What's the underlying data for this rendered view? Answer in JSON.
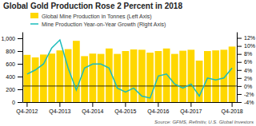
{
  "chart_data": {
    "type": "bar",
    "title": "Global Gold Production Rose 2 Percent in 2018",
    "annotations": [
      "Source: GFMS, Refinitiv, U.S. Global Investors"
    ],
    "categories": [
      "Q4-2012",
      null,
      null,
      null,
      "Q4-2013",
      null,
      null,
      null,
      "Q4-2014",
      null,
      null,
      null,
      "Q4-2015",
      null,
      null,
      null,
      "Q4-2016",
      null,
      null,
      null,
      "Q4-2017",
      null,
      null,
      null,
      null,
      "Q4-2018"
    ],
    "series": [
      {
        "name": "Global Mine Production in Tonnes (Left Axis)",
        "type": "bar",
        "color": "#FFD700",
        "values": [
          740,
          700,
          745,
          760,
          810,
          830,
          960,
          720,
          760,
          755,
          840,
          755,
          800,
          825,
          820,
          775,
          800,
          840,
          755,
          805,
          820,
          650,
          800,
          810,
          820,
          870
        ]
      },
      {
        "name": "Mine Production Year-on-Year Growth (Right Axis)",
        "type": "line",
        "color": "#1ABCBC",
        "axis": "y2",
        "values": [
          3.0,
          4.0,
          5.5,
          9.5,
          11.5,
          4.5,
          -1.0,
          4.5,
          5.5,
          5.5,
          4.5,
          -0.5,
          -1.5,
          -0.5,
          -2.5,
          -3.0,
          2.5,
          3.0,
          0.5,
          -0.5,
          0.5,
          -2.5,
          2.0,
          1.5,
          2.0,
          4.5
        ]
      }
    ],
    "ylim": [
      0,
      1100
    ],
    "yticks": [
      0,
      200,
      400,
      600,
      800,
      {
        "value": 1000,
        "label": "1,000"
      }
    ],
    "y2lim": [
      -4,
      13.5
    ],
    "y2ticks": [
      {
        "value": -4,
        "label": "-4%"
      },
      {
        "value": -2,
        "label": "-2%"
      },
      {
        "value": 0,
        "label": "0%"
      },
      {
        "value": 2,
        "label": "2%"
      },
      {
        "value": 4,
        "label": "4%"
      },
      {
        "value": 6,
        "label": "6%"
      },
      {
        "value": 8,
        "label": "8%"
      },
      {
        "value": 10,
        "label": "10%"
      },
      {
        "value": 12,
        "label": "12%"
      }
    ],
    "grid": false,
    "legend": "upper left"
  }
}
